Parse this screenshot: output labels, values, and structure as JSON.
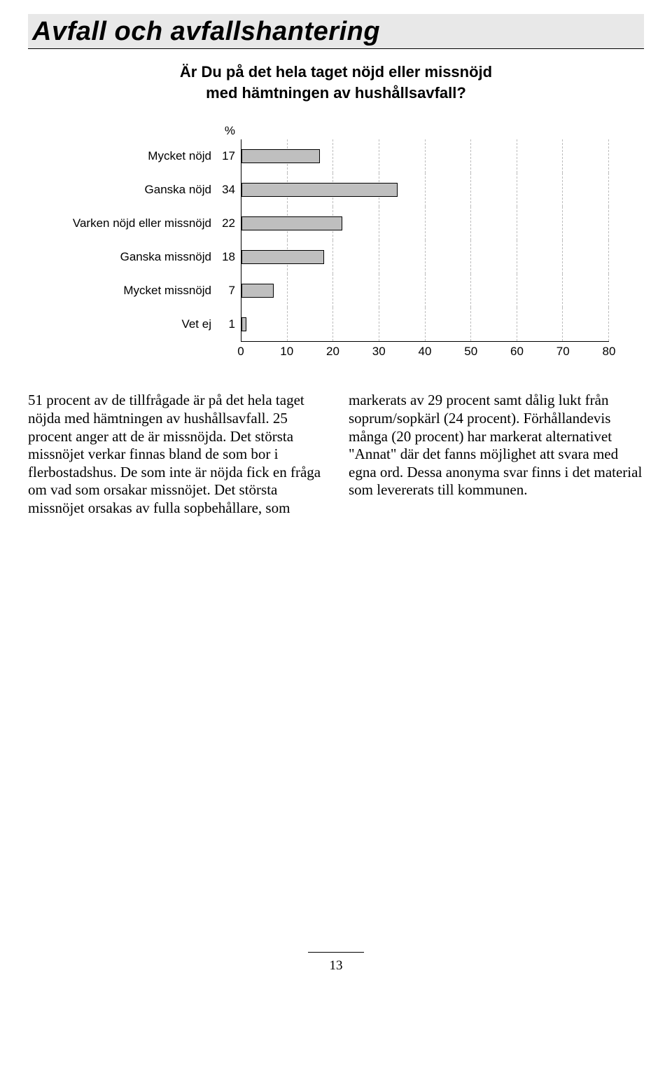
{
  "page": {
    "title": "Avfall och avfallshantering",
    "subtitle_line1": "Är Du på det hela taget nöjd eller missnöjd",
    "subtitle_line2": "med hämtningen av hushållsavfall?",
    "percent_symbol": "%",
    "page_number": "13"
  },
  "chart": {
    "type": "bar",
    "x_max": 80,
    "x_tick_step": 10,
    "x_ticks": [
      "0",
      "10",
      "20",
      "30",
      "40",
      "50",
      "60",
      "70",
      "80"
    ],
    "bar_color": "#bfbfbf",
    "bar_border": "#000000",
    "grid_color": "#bdbdbd",
    "rows": [
      {
        "label": "Mycket nöjd",
        "value": 17
      },
      {
        "label": "Ganska nöjd",
        "value": 34
      },
      {
        "label": "Varken nöjd eller missnöjd",
        "value": 22
      },
      {
        "label": "Ganska missnöjd",
        "value": 18
      },
      {
        "label": "Mycket missnöjd",
        "value": 7
      },
      {
        "label": "Vet ej",
        "value": 1
      }
    ]
  },
  "body": {
    "text": "51 procent av de tillfrågade är på det hela taget nöjda med hämtningen av hushållsavfall. 25 procent anger att de är missnöjda. Det största missnöjet verkar finnas bland de som bor i flerbostadshus. De som inte är nöjda fick en fråga om vad som orsakar missnöjet. Det största missnöjet orsakas av fulla sopbehållare, som markerats av 29 procent samt dålig lukt från soprum/sopkärl (24 procent). Förhållandevis många (20 procent) har markerat alternativet \"Annat\" där det fanns möjlighet att svara med egna ord. Dessa anonyma svar finns i det material som levererats till kommunen."
  }
}
